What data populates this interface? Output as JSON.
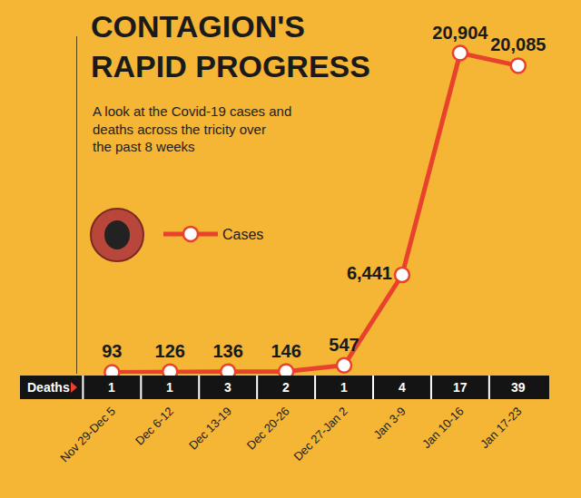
{
  "chart_data": {
    "type": "line",
    "title": "CONTAGION'S RAPID PROGRESS",
    "subtitle": "A look at the Covid-19 cases and deaths across the tricity over the past 8 weeks",
    "categories": [
      "Nov 29-Dec 5",
      "Dec 6-12",
      "Dec 13-19",
      "Dec 20-26",
      "Dec 27-Jan 2",
      "Jan 3-9",
      "Jan 10-16",
      "Jan 17-23"
    ],
    "series": [
      {
        "name": "Cases",
        "color": "#e8412c",
        "marker": "circle",
        "line_style": "solid",
        "values": [
          93,
          126,
          136,
          146,
          547,
          6441,
          20904,
          20085
        ],
        "value_labels": [
          "93",
          "126",
          "136",
          "146",
          "547",
          "6,441",
          "20,904",
          "20,085"
        ]
      }
    ],
    "deaths": {
      "name": "Deaths",
      "values": [
        1,
        1,
        3,
        2,
        1,
        4,
        17,
        39
      ]
    },
    "ylim": [
      0,
      22000
    ],
    "yticks": [],
    "tick_labels": "x",
    "data_labels": true,
    "legend": "upper left",
    "grid": false
  }
}
